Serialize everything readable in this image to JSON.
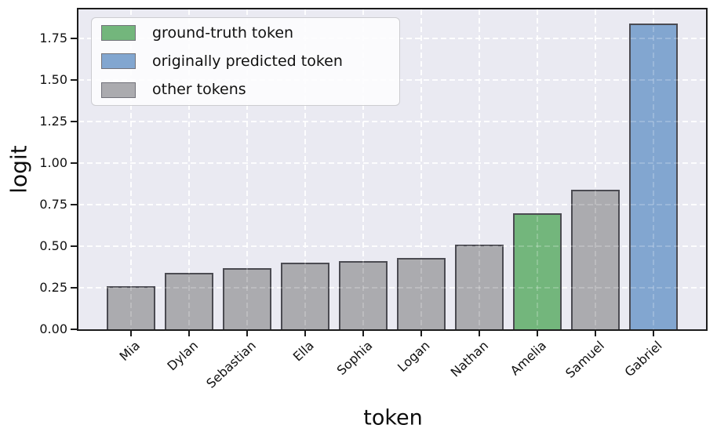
{
  "chart_data": {
    "type": "bar",
    "title": "",
    "xlabel": "token",
    "ylabel": "logit",
    "categories": [
      "Mia",
      "Dylan",
      "Sebastian",
      "Ella",
      "Sophia",
      "Logan",
      "Nathan",
      "Amelia",
      "Samuel",
      "Gabriel"
    ],
    "values": [
      0.26,
      0.34,
      0.37,
      0.4,
      0.41,
      0.43,
      0.51,
      0.7,
      0.84,
      1.84
    ],
    "bar_roles": [
      "other",
      "other",
      "other",
      "other",
      "other",
      "other",
      "other",
      "ground_truth",
      "other",
      "predicted"
    ],
    "ylim": [
      0,
      1.925
    ],
    "yticks": [
      0,
      0.25,
      0.5,
      0.75,
      1.0,
      1.25,
      1.5,
      1.75
    ],
    "ytick_labels": [
      "0.00",
      "0.25",
      "0.50",
      "0.75",
      "1.00",
      "1.25",
      "1.50",
      "1.75"
    ],
    "grid": "white dashed, horizontal and vertical",
    "legend": {
      "position": "upper-left",
      "entries": [
        {
          "label": "ground-truth token",
          "role": "ground_truth"
        },
        {
          "label": "originally predicted token",
          "role": "predicted"
        },
        {
          "label": "other tokens",
          "role": "other"
        }
      ]
    },
    "colors": {
      "ground_truth": "#73b67c",
      "predicted": "#82a6d0",
      "other": "#ababaf",
      "bar_edge": "#4b4b52",
      "plot_background": "#eaeaf2",
      "grid": "#ffffff",
      "spine": "#1c1c1c",
      "figure_background": "#ffffff"
    }
  }
}
